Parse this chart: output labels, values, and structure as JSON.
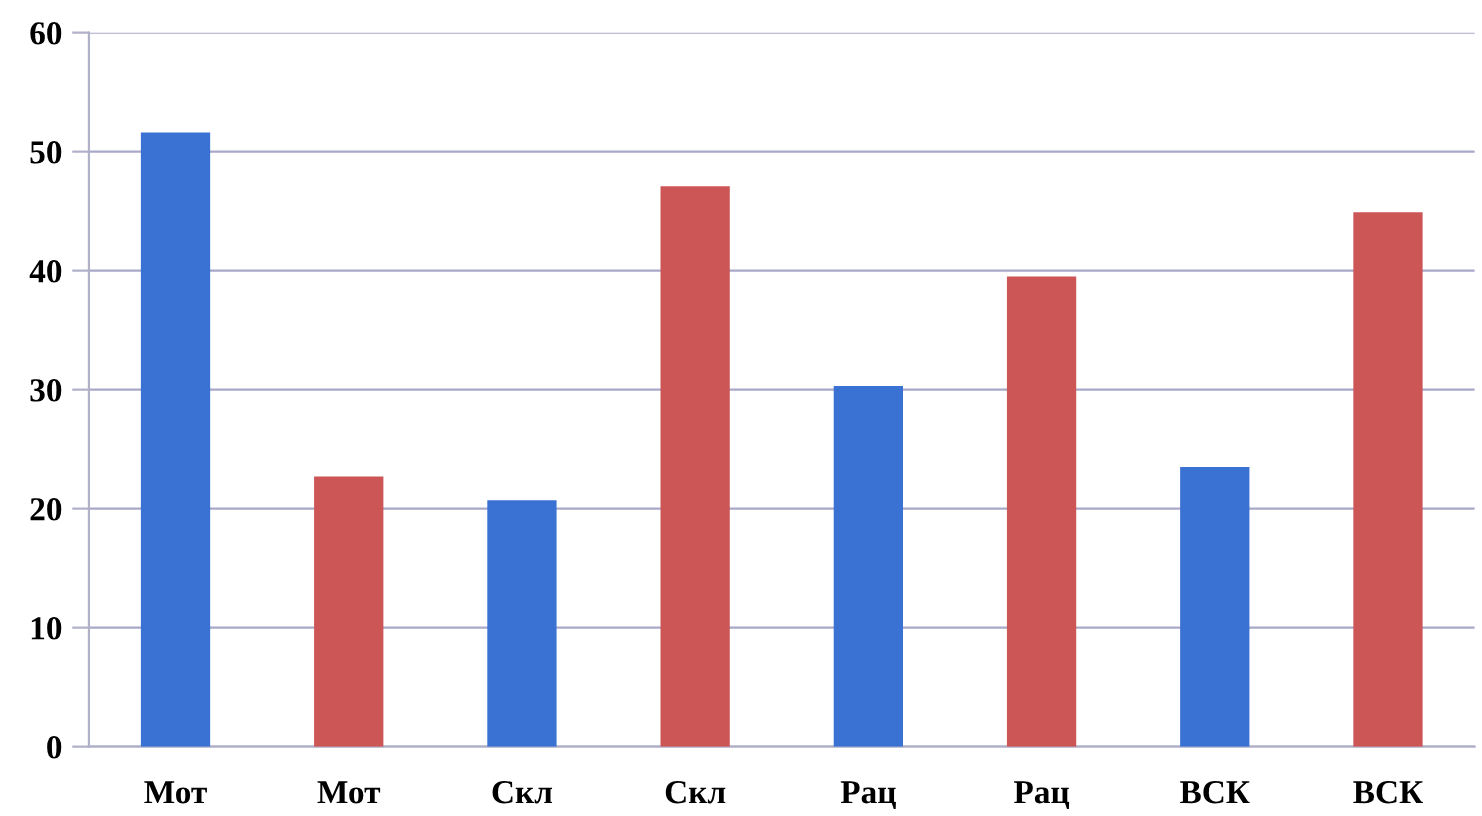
{
  "chart_data": {
    "type": "bar",
    "categories": [
      "Мот",
      "Мот",
      "Скл",
      "Скл",
      "Рац",
      "Рац",
      "ВСК",
      "ВСК"
    ],
    "values": [
      51.6,
      22.7,
      20.7,
      47.1,
      30.3,
      39.5,
      23.5,
      44.9
    ],
    "colors": [
      "#3a72d4",
      "#cc5555",
      "#3a72d4",
      "#cc5555",
      "#3a72d4",
      "#cc5555",
      "#3a72d4",
      "#cc5555"
    ],
    "ylim": [
      0,
      60
    ],
    "yticks": [
      0,
      10,
      20,
      30,
      40,
      50,
      60
    ],
    "grid": "y"
  }
}
